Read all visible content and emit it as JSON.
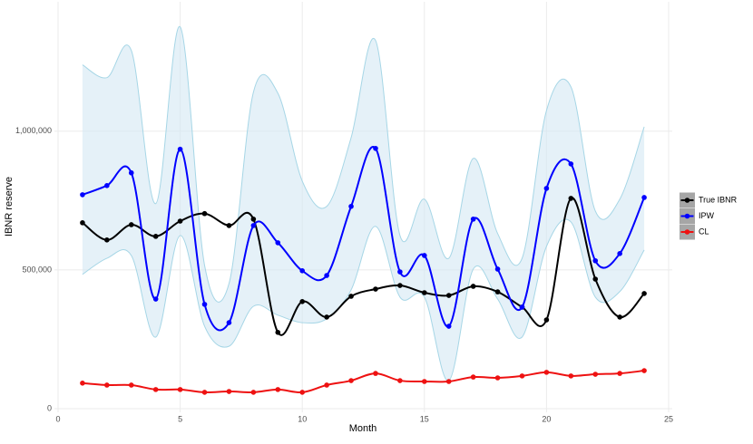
{
  "chart_data": {
    "type": "line",
    "x_label": "Month",
    "y_label": "IBNR reserve",
    "x": [
      1,
      2,
      3,
      4,
      5,
      6,
      7,
      8,
      9,
      10,
      11,
      12,
      13,
      14,
      15,
      16,
      17,
      18,
      19,
      20,
      21,
      22,
      23,
      24
    ],
    "xlim": [
      0,
      25
    ],
    "xticks": [
      0,
      5,
      10,
      15,
      20,
      25
    ],
    "ylim": [
      0,
      1450000
    ],
    "yticks": [
      0,
      {
        "value": 500000,
        "label": "500,000"
      },
      {
        "value": 1000000,
        "label": "1,000,000"
      }
    ],
    "grid": true,
    "legend": "right",
    "band": {
      "color": "#d3e8f4",
      "edge_color": "#a6d6e6",
      "upper": [
        1239000,
        1193000,
        1291000,
        739000,
        1376000,
        516000,
        451000,
        1141000,
        1137000,
        820000,
        729000,
        977000,
        1327000,
        624000,
        755000,
        542000,
        902000,
        631000,
        542000,
        1075000,
        1160000,
        712000,
        755000,
        1016000
      ],
      "lower": [
        484000,
        542000,
        552000,
        258000,
        624000,
        297000,
        225000,
        369000,
        337000,
        310000,
        324000,
        428000,
        657000,
        402000,
        402000,
        101000,
        503000,
        395000,
        258000,
        585000,
        673000,
        402000,
        422000,
        572000
      ]
    },
    "series": [
      {
        "name": "True IBNR",
        "color": "#000000",
        "values": [
          670000,
          608000,
          663000,
          621000,
          676000,
          703000,
          660000,
          683000,
          275000,
          386000,
          330000,
          405000,
          431000,
          444000,
          418000,
          408000,
          441000,
          421000,
          366000,
          320000,
          758000,
          467000,
          330000,
          415000
        ]
      },
      {
        "name": "IPW",
        "color": "#0000ff",
        "values": [
          771000,
          804000,
          850000,
          395000,
          935000,
          376000,
          310000,
          660000,
          598000,
          497000,
          480000,
          729000,
          938000,
          493000,
          552000,
          297000,
          683000,
          503000,
          366000,
          794000,
          882000,
          533000,
          559000,
          761000
        ]
      },
      {
        "name": "CL",
        "color": "#ee1111",
        "values": [
          92000,
          85000,
          85000,
          69000,
          69000,
          59000,
          62000,
          59000,
          69000,
          59000,
          85000,
          101000,
          127000,
          101000,
          98000,
          98000,
          114000,
          111000,
          118000,
          131000,
          118000,
          124000,
          127000,
          137000
        ]
      }
    ]
  }
}
